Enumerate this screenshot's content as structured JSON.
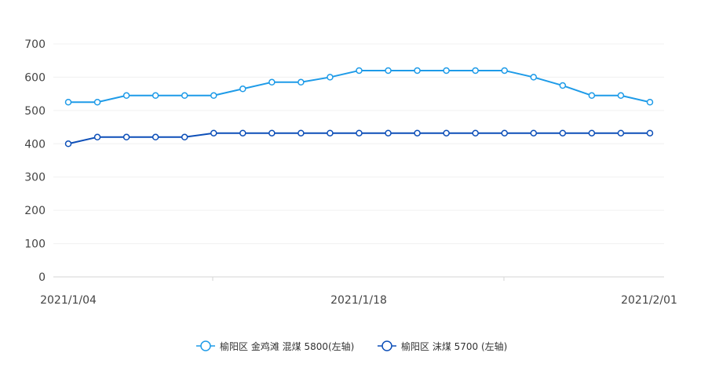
{
  "chart_data": {
    "type": "line",
    "title": "",
    "xlabel": "",
    "ylabel": "",
    "ylim": [
      0,
      700
    ],
    "yticks": [
      "0",
      "100",
      "200",
      "300",
      "400",
      "500",
      "600",
      "700"
    ],
    "xticks": [
      "2021/1/04",
      "2021/1/18",
      "2021/2/01"
    ],
    "grid": true,
    "legend_position": "bottom",
    "x": [
      "2021/1/04",
      "2021/1/05",
      "2021/1/06",
      "2021/1/07",
      "2021/1/08",
      "2021/1/11",
      "2021/1/12",
      "2021/1/13",
      "2021/1/14",
      "2021/1/15",
      "2021/1/18",
      "2021/1/19",
      "2021/1/20",
      "2021/1/21",
      "2021/1/22",
      "2021/1/25",
      "2021/1/26",
      "2021/1/27",
      "2021/1/28",
      "2021/1/29",
      "2021/2/01"
    ],
    "series": [
      {
        "name": "榆阳区 金鸡滩 混煤  5800(左轴)",
        "color": "#1e9be8",
        "values": [
          525,
          525,
          545,
          545,
          545,
          545,
          565,
          585,
          585,
          600,
          620,
          620,
          620,
          620,
          620,
          620,
          600,
          575,
          545,
          545,
          525
        ]
      },
      {
        "name": "榆阳区  沫煤  5700 (左轴)",
        "color": "#0d4fb8",
        "values": [
          400,
          420,
          420,
          420,
          420,
          432,
          432,
          432,
          432,
          432,
          432,
          432,
          432,
          432,
          432,
          432,
          432,
          432,
          432,
          432,
          432
        ]
      }
    ]
  }
}
